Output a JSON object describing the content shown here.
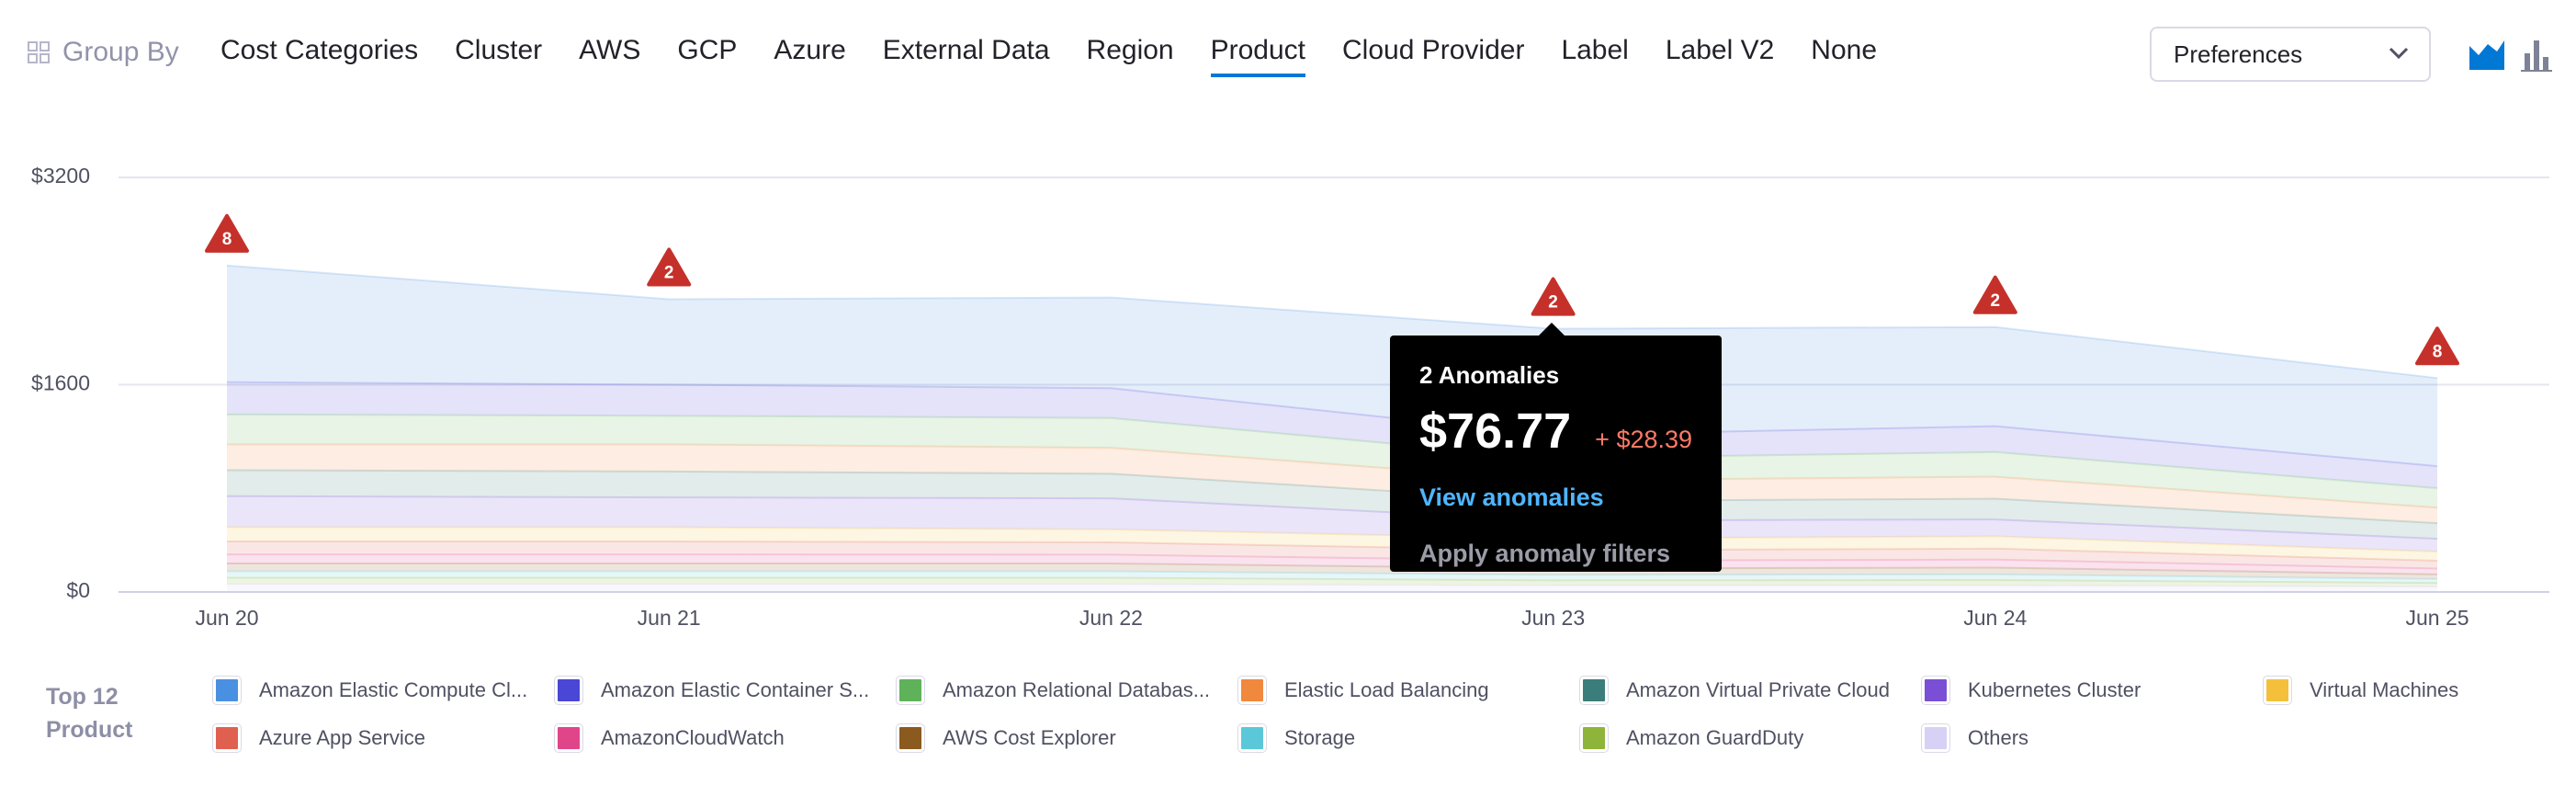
{
  "toolbar": {
    "group_by_label": "Group By",
    "tabs": [
      "Cost Categories",
      "Cluster",
      "AWS",
      "GCP",
      "Azure",
      "External Data",
      "Region",
      "Product",
      "Cloud Provider",
      "Label",
      "Label V2",
      "None"
    ],
    "active_tab": 7,
    "preferences": "Preferences"
  },
  "chart_data": {
    "type": "stacked-area",
    "categories": [
      "Jun 20",
      "Jun 21",
      "Jun 22",
      "Jun 23",
      "Jun 24",
      "Jun 25"
    ],
    "ylim": [
      0,
      3200
    ],
    "yticks": [
      {
        "value": 0,
        "label": "$0"
      },
      {
        "value": 1600,
        "label": "$1600"
      },
      {
        "value": 3200,
        "label": "$3200"
      }
    ],
    "grid": true,
    "legend_title": "Top 12 Product",
    "anomaly_counts": [
      8,
      2,
      null,
      2,
      2,
      8
    ],
    "series": [
      {
        "name": "Amazon Elastic Compute Cl...",
        "color": "#4a90e2",
        "values": [
          900,
          660,
          700,
          820,
          765,
          680
        ]
      },
      {
        "name": "Amazon Elastic Container S...",
        "color": "#4a46d6",
        "values": [
          250,
          240,
          230,
          180,
          200,
          170
        ]
      },
      {
        "name": "Amazon Relational Databas...",
        "color": "#5fb25a",
        "values": [
          230,
          220,
          230,
          170,
          190,
          150
        ]
      },
      {
        "name": "Elastic Load Balancing",
        "color": "#f0883e",
        "values": [
          200,
          210,
          200,
          160,
          170,
          120
        ]
      },
      {
        "name": "Amazon Virtual Private Cloud",
        "color": "#3b7d7a",
        "values": [
          200,
          200,
          190,
          150,
          160,
          120
        ]
      },
      {
        "name": "Kubernetes Cluster",
        "color": "#7a4fd6",
        "values": [
          240,
          230,
          240,
          140,
          130,
          100
        ]
      },
      {
        "name": "Virtual Machines",
        "color": "#f4c03c",
        "values": [
          110,
          110,
          100,
          90,
          95,
          70
        ]
      },
      {
        "name": "Azure App Service",
        "color": "#e0604f",
        "values": [
          100,
          100,
          95,
          80,
          85,
          60
        ]
      },
      {
        "name": "AmazonCloudWatch",
        "color": "#e0458a",
        "values": [
          70,
          70,
          68,
          60,
          62,
          45
        ]
      },
      {
        "name": "AWS Cost Explorer",
        "color": "#8a5a1f",
        "values": [
          60,
          60,
          60,
          50,
          52,
          36
        ]
      },
      {
        "name": "Storage",
        "color": "#5ac8d8",
        "values": [
          50,
          50,
          50,
          42,
          44,
          30
        ]
      },
      {
        "name": "Amazon GuardDuty",
        "color": "#8fb43a",
        "values": [
          50,
          50,
          50,
          40,
          42,
          30
        ]
      },
      {
        "name": "Others",
        "color": "#d6d1f5",
        "values": [
          60,
          60,
          60,
          50,
          50,
          40
        ]
      }
    ]
  },
  "tooltip": {
    "title": "2 Anomalies",
    "amount": "$76.77",
    "delta": "+ $28.39",
    "link": "View anomalies",
    "action": "Apply anomaly filters"
  }
}
